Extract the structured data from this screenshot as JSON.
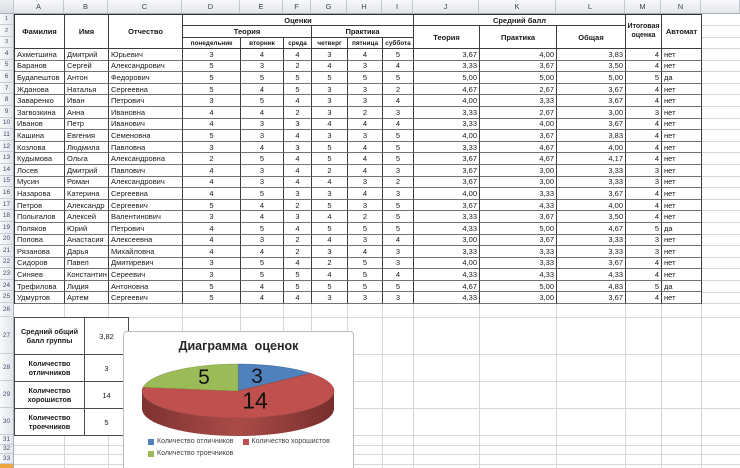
{
  "sheet": {
    "column_letters": [
      "A",
      "B",
      "C",
      "D",
      "E",
      "F",
      "G",
      "H",
      "I",
      "J",
      "K",
      "L",
      "M",
      "N",
      ""
    ],
    "row_numbers_top": [
      "1",
      "2",
      "3",
      "4",
      "5",
      "6",
      "7",
      "8",
      "9",
      "10",
      "11",
      "12",
      "13",
      "14",
      "15",
      "16",
      "17",
      "18",
      "19",
      "20",
      "21",
      "22",
      "23",
      "24",
      "25"
    ],
    "row_numbers_bottom": [
      "26",
      "27",
      "28",
      "29",
      "30",
      "31",
      "32",
      "33"
    ]
  },
  "table": {
    "headers": {
      "surname": "Фамилия",
      "name": "Имя",
      "patronymic": "Отчество",
      "grades_group": "Оценки",
      "avg_group": "Средний балл",
      "theory": "Теория",
      "practice": "Практика",
      "days": [
        "понедельник",
        "вторник",
        "среда",
        "четверг",
        "пятница",
        "суббота"
      ],
      "avg_theory": "Теория",
      "avg_practice": "Практика",
      "avg_total": "Общая",
      "final_grade": "Итоговая оценка",
      "auto_pass": "Автомат"
    },
    "students": [
      {
        "surname": "Ахметшина",
        "name": "Дмитрий",
        "patronymic": "Юрьевич",
        "grades": [
          3,
          4,
          4,
          3,
          4,
          5
        ],
        "avg_theory": "3,67",
        "avg_practice": "4,00",
        "avg_total": "3,83",
        "final": "4",
        "auto": "нет"
      },
      {
        "surname": "Баранов",
        "name": "Сергей",
        "patronymic": "Александрович",
        "grades": [
          5,
          3,
          2,
          4,
          3,
          4
        ],
        "avg_theory": "3,33",
        "avg_practice": "3,67",
        "avg_total": "3,50",
        "final": "4",
        "auto": "нет"
      },
      {
        "surname": "Будапештов",
        "name": "Антон",
        "patronymic": "Федорович",
        "grades": [
          5,
          5,
          5,
          5,
          5,
          5
        ],
        "avg_theory": "5,00",
        "avg_practice": "5,00",
        "avg_total": "5,00",
        "final": "5",
        "auto": "да"
      },
      {
        "surname": "Жданова",
        "name": "Наталья",
        "patronymic": "Сергеевна",
        "grades": [
          5,
          4,
          5,
          3,
          3,
          2
        ],
        "avg_theory": "4,67",
        "avg_practice": "2,67",
        "avg_total": "3,67",
        "final": "4",
        "auto": "нет"
      },
      {
        "surname": "Заваренко",
        "name": "Иван",
        "patronymic": "Петрович",
        "grades": [
          3,
          5,
          4,
          3,
          3,
          4
        ],
        "avg_theory": "4,00",
        "avg_practice": "3,33",
        "avg_total": "3,67",
        "final": "4",
        "auto": "нет"
      },
      {
        "surname": "Загвозкина",
        "name": "Анна",
        "patronymic": "Ивановна",
        "grades": [
          4,
          4,
          2,
          3,
          2,
          3
        ],
        "avg_theory": "3,33",
        "avg_practice": "2,67",
        "avg_total": "3,00",
        "final": "3",
        "auto": "нет"
      },
      {
        "surname": "Иванов",
        "name": "Петр",
        "patronymic": "Иванович",
        "grades": [
          4,
          3,
          3,
          4,
          4,
          4
        ],
        "avg_theory": "3,33",
        "avg_practice": "4,00",
        "avg_total": "3,67",
        "final": "4",
        "auto": "нет"
      },
      {
        "surname": "Кашина",
        "name": "Евгения",
        "patronymic": "Семеновна",
        "grades": [
          5,
          3,
          4,
          3,
          3,
          5
        ],
        "avg_theory": "4,00",
        "avg_practice": "3,67",
        "avg_total": "3,83",
        "final": "4",
        "auto": "нет"
      },
      {
        "surname": "Козлова",
        "name": "Людмила",
        "patronymic": "Павловна",
        "grades": [
          3,
          4,
          3,
          5,
          4,
          5
        ],
        "avg_theory": "3,33",
        "avg_practice": "4,67",
        "avg_total": "4,00",
        "final": "4",
        "auto": "нет"
      },
      {
        "surname": "Кудымова",
        "name": "Ольга",
        "patronymic": "Александровна",
        "grades": [
          2,
          5,
          4,
          5,
          4,
          5
        ],
        "avg_theory": "3,67",
        "avg_practice": "4,67",
        "avg_total": "4,17",
        "final": "4",
        "auto": "нет"
      },
      {
        "surname": "Лосев",
        "name": "Дмитрий",
        "patronymic": "Павлович",
        "grades": [
          4,
          3,
          4,
          2,
          4,
          3
        ],
        "avg_theory": "3,67",
        "avg_practice": "3,00",
        "avg_total": "3,33",
        "final": "3",
        "auto": "нет"
      },
      {
        "surname": "Мусин",
        "name": "Роман",
        "patronymic": "Александрович",
        "grades": [
          4,
          3,
          4,
          4,
          3,
          2
        ],
        "avg_theory": "3,67",
        "avg_practice": "3,00",
        "avg_total": "3,33",
        "final": "3",
        "auto": "нет"
      },
      {
        "surname": "Назарова",
        "name": "Катерина",
        "patronymic": "Сергеевна",
        "grades": [
          4,
          5,
          3,
          3,
          4,
          3
        ],
        "avg_theory": "4,00",
        "avg_practice": "3,33",
        "avg_total": "3,67",
        "final": "4",
        "auto": "нет"
      },
      {
        "surname": "Петров",
        "name": "Александр",
        "patronymic": "Сергеевич",
        "grades": [
          5,
          4,
          2,
          5,
          3,
          5
        ],
        "avg_theory": "3,67",
        "avg_practice": "4,33",
        "avg_total": "4,00",
        "final": "4",
        "auto": "нет"
      },
      {
        "surname": "Полыгалов",
        "name": "Алексей",
        "patronymic": "Валентинович",
        "grades": [
          3,
          4,
          3,
          4,
          2,
          5
        ],
        "avg_theory": "3,33",
        "avg_practice": "3,67",
        "avg_total": "3,50",
        "final": "4",
        "auto": "нет"
      },
      {
        "surname": "Поляков",
        "name": "Юрий",
        "patronymic": "Петрович",
        "grades": [
          4,
          5,
          4,
          5,
          5,
          5
        ],
        "avg_theory": "4,33",
        "avg_practice": "5,00",
        "avg_total": "4,67",
        "final": "5",
        "auto": "да"
      },
      {
        "surname": "Попова",
        "name": "Анастасия",
        "patronymic": "Алексеевна",
        "grades": [
          4,
          3,
          2,
          4,
          3,
          4
        ],
        "avg_theory": "3,00",
        "avg_practice": "3,67",
        "avg_total": "3,33",
        "final": "3",
        "auto": "нет"
      },
      {
        "surname": "Рязанова",
        "name": "Дарья",
        "patronymic": "Михайловна",
        "grades": [
          4,
          4,
          2,
          3,
          4,
          3
        ],
        "avg_theory": "3,33",
        "avg_practice": "3,33",
        "avg_total": "3,33",
        "final": "3",
        "auto": "нет"
      },
      {
        "surname": "Сидоров",
        "name": "Павел",
        "patronymic": "Дмитиревич",
        "grades": [
          3,
          5,
          4,
          2,
          5,
          3
        ],
        "avg_theory": "4,00",
        "avg_practice": "3,33",
        "avg_total": "3,67",
        "final": "4",
        "auto": "нет"
      },
      {
        "surname": "Синяев",
        "name": "Константин",
        "patronymic": "Сереевич",
        "grades": [
          3,
          5,
          5,
          4,
          5,
          4
        ],
        "avg_theory": "4,33",
        "avg_practice": "4,33",
        "avg_total": "4,33",
        "final": "4",
        "auto": "нет"
      },
      {
        "surname": "Трефилова",
        "name": "Лидия",
        "patronymic": "Антоновна",
        "grades": [
          5,
          4,
          5,
          5,
          5,
          5
        ],
        "avg_theory": "4,67",
        "avg_practice": "5,00",
        "avg_total": "4,83",
        "final": "5",
        "auto": "да"
      },
      {
        "surname": "Удмуртов",
        "name": "Артем",
        "patronymic": "Сергеевич",
        "grades": [
          5,
          4,
          4,
          3,
          3,
          3
        ],
        "avg_theory": "4,33",
        "avg_practice": "3,00",
        "avg_total": "3,67",
        "final": "4",
        "auto": "нет"
      }
    ]
  },
  "summary": {
    "rows": [
      {
        "label": "Средний общий балл группы",
        "value": "3,82"
      },
      {
        "label": "Количество отличников",
        "value": "3"
      },
      {
        "label": "Количество хорошистов",
        "value": "14"
      },
      {
        "label": "Количество троечников",
        "value": "5"
      }
    ]
  },
  "chart_data": {
    "type": "pie",
    "style": "3d-pie",
    "title": "Диаграмма оценок",
    "labels": [
      "Количество отличников",
      "Количество хорошистов",
      "Количество троечников"
    ],
    "values": [
      3,
      14,
      5
    ],
    "data_labels": [
      "3",
      "14",
      "5"
    ],
    "colors": [
      "#4f81bd",
      "#c0504d",
      "#9bbb59"
    ],
    "side_color": "#8e3b39",
    "legend_position": "bottom"
  }
}
